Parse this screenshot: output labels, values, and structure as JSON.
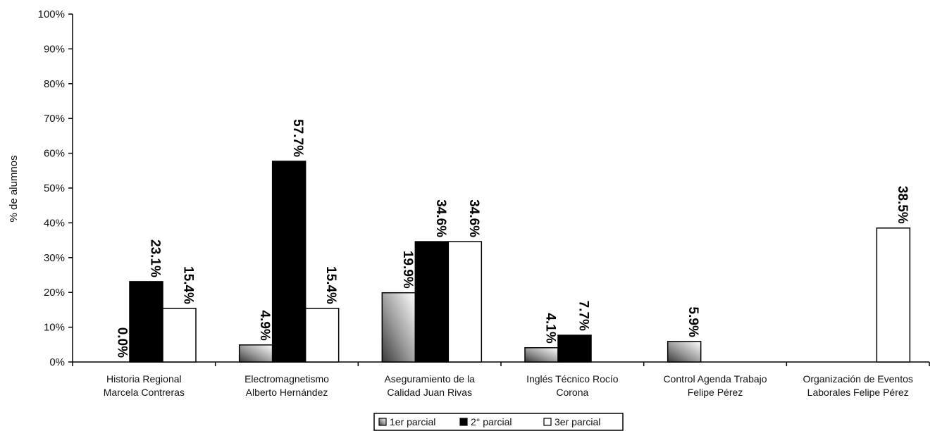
{
  "chart_data": {
    "type": "bar",
    "ylabel": "% de alumnos",
    "xlabel": "",
    "ylim": [
      0,
      100
    ],
    "yticks": [
      "0%",
      "10%",
      "20%",
      "30%",
      "40%",
      "50%",
      "60%",
      "70%",
      "80%",
      "90%",
      "100%"
    ],
    "categories": [
      [
        "Historia Regional",
        "Marcela Contreras"
      ],
      [
        "Electromagnetismo",
        "Alberto Hernández"
      ],
      [
        "Aseguramiento de la",
        "Calidad Juan Rivas"
      ],
      [
        "Inglés Técnico Rocío",
        "Corona"
      ],
      [
        "Control Agenda Trabajo",
        "Felipe Pérez"
      ],
      [
        "Organización de Eventos",
        "Laborales Felipe Pérez"
      ]
    ],
    "series": [
      {
        "name": "1er parcial",
        "fill": "gradient-gray",
        "values": [
          0.0,
          4.9,
          19.9,
          4.1,
          5.9,
          null
        ],
        "labels": [
          "0.0%",
          "4.9%",
          "19.9%",
          "4.1%",
          "5.9%",
          ""
        ]
      },
      {
        "name": "2° parcial",
        "fill": "#000000",
        "values": [
          23.1,
          57.7,
          34.6,
          7.7,
          null,
          null
        ],
        "labels": [
          "23.1%",
          "57.7%",
          "34.6%",
          "7.7%",
          "",
          ""
        ]
      },
      {
        "name": "3er parcial",
        "fill": "#ffffff",
        "values": [
          15.4,
          15.4,
          34.6,
          null,
          null,
          38.5
        ],
        "labels": [
          "15.4%",
          "15.4%",
          "34.6%",
          "",
          "",
          "38.5%"
        ]
      }
    ],
    "legend": {
      "position": "bottom-center"
    },
    "grid": false
  }
}
